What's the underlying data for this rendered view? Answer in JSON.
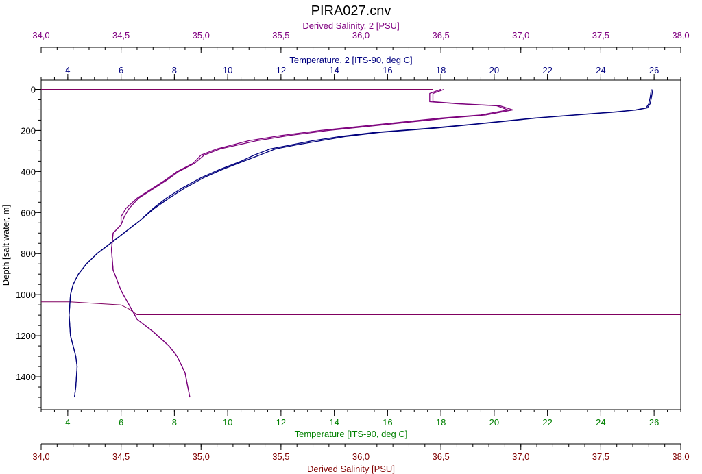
{
  "chart_data": {
    "type": "line",
    "title": "PIRA027.cnv",
    "ylabel": "Depth [salt water, m]",
    "y_reversed": true,
    "ylim": [
      -45,
      1560
    ],
    "yticks": [
      "0",
      "200",
      "400",
      "600",
      "800",
      "1000",
      "1200",
      "1400"
    ],
    "grid": false,
    "legend": "none",
    "axes": {
      "sal2": {
        "label": "Derived Salinity, 2 [PSU]",
        "range": [
          34.0,
          38.0
        ],
        "ticks": [
          "34,0",
          "34,5",
          "35,0",
          "35,5",
          "36,0",
          "36,5",
          "37,0",
          "37,5",
          "38,0"
        ],
        "color": "#800080"
      },
      "temp2": {
        "label": "Temperature, 2 [ITS-90, deg C]",
        "range": [
          3.0,
          27.0
        ],
        "ticks": [
          "4",
          "6",
          "8",
          "10",
          "12",
          "14",
          "16",
          "18",
          "20",
          "22",
          "24",
          "26"
        ],
        "color": "#000080"
      },
      "temp": {
        "label": "Temperature [ITS-90, deg C]",
        "range": [
          3.0,
          27.0
        ],
        "ticks": [
          "4",
          "6",
          "8",
          "10",
          "12",
          "14",
          "16",
          "18",
          "20",
          "22",
          "24",
          "26"
        ],
        "color": "#008000"
      },
      "sal": {
        "label": "Derived Salinity [PSU]",
        "range": [
          34.0,
          38.0
        ],
        "ticks": [
          "34,0",
          "34,5",
          "35,0",
          "35,5",
          "36,0",
          "36,5",
          "37,0",
          "37,5",
          "38,0"
        ],
        "color": "#800000"
      }
    },
    "series": [
      {
        "axis": "temp2",
        "color": "#000080",
        "x": [
          25.9,
          25.85,
          25.8,
          25.7,
          25.3,
          24.5,
          23.5,
          21.5,
          19.2,
          17.5,
          15.5,
          14.2,
          13.2,
          12.4,
          11.6,
          11.0,
          10.5,
          9.7,
          9.0,
          8.3,
          7.7,
          7.2,
          6.7,
          6.2,
          5.6,
          5.1,
          4.7,
          4.4,
          4.2,
          4.1,
          4.05,
          4.1,
          4.2,
          4.3,
          4.35,
          4.3,
          4.25
        ],
        "y": [
          0,
          40,
          70,
          90,
          100,
          110,
          120,
          140,
          170,
          190,
          210,
          230,
          250,
          270,
          290,
          320,
          350,
          390,
          430,
          480,
          530,
          580,
          640,
          690,
          750,
          800,
          850,
          900,
          950,
          1000,
          1100,
          1200,
          1250,
          1300,
          1350,
          1450,
          1500
        ]
      },
      {
        "axis": "temp",
        "color": "#00007a",
        "x": [
          25.95,
          25.9,
          25.85,
          25.75,
          25.35,
          24.6,
          23.6,
          21.6,
          19.3,
          17.7,
          15.7,
          14.4,
          13.5,
          12.6,
          11.8,
          11.2,
          10.6,
          9.8,
          9.1,
          8.4,
          7.8,
          7.25,
          6.7,
          6.2,
          5.6,
          5.1,
          4.7,
          4.4,
          4.2,
          4.1,
          4.05,
          4.1,
          4.2,
          4.3,
          4.35,
          4.3,
          4.25
        ],
        "y": [
          0,
          40,
          70,
          90,
          100,
          110,
          120,
          140,
          170,
          190,
          210,
          230,
          250,
          270,
          290,
          320,
          350,
          390,
          430,
          480,
          530,
          580,
          640,
          690,
          750,
          800,
          850,
          900,
          950,
          1000,
          1100,
          1200,
          1250,
          1300,
          1350,
          1450,
          1500
        ]
      },
      {
        "axis": "sal2",
        "color": "#800080",
        "x": [
          36.5,
          36.43,
          36.43,
          36.6,
          36.85,
          36.92,
          36.75,
          36.5,
          36.25,
          36.0,
          35.75,
          35.5,
          35.3,
          35.1,
          35.0,
          34.95,
          34.85,
          34.78,
          34.7,
          34.6,
          34.53,
          34.5,
          34.5,
          34.45,
          34.44,
          34.45,
          34.5,
          34.55,
          34.6,
          34.7,
          34.8,
          34.85,
          34.9,
          34.93
        ],
        "y": [
          0,
          20,
          60,
          70,
          80,
          100,
          125,
          140,
          160,
          180,
          200,
          225,
          250,
          290,
          320,
          360,
          400,
          440,
          480,
          530,
          580,
          620,
          660,
          700,
          780,
          880,
          980,
          1050,
          1120,
          1180,
          1250,
          1300,
          1380,
          1500
        ]
      },
      {
        "axis": "sal",
        "color": "#7a007a",
        "x": [
          36.52,
          36.45,
          36.45,
          36.62,
          36.87,
          36.95,
          36.78,
          36.55,
          36.3,
          36.05,
          35.8,
          35.55,
          35.35,
          35.12,
          35.02,
          34.96,
          34.86,
          34.79,
          34.71,
          34.61,
          34.55,
          34.52,
          34.5,
          34.45,
          34.44,
          34.45,
          34.5,
          34.55,
          34.6,
          34.7,
          34.8,
          34.85,
          34.9,
          34.93
        ],
        "y": [
          0,
          20,
          60,
          70,
          80,
          100,
          125,
          140,
          160,
          180,
          200,
          225,
          250,
          290,
          320,
          360,
          400,
          440,
          480,
          530,
          580,
          620,
          660,
          700,
          780,
          880,
          980,
          1050,
          1120,
          1180,
          1250,
          1300,
          1380,
          1500
        ]
      }
    ],
    "reference_lines": [
      {
        "color": "#800060",
        "x": [
          34.0,
          36.45
        ],
        "y": [
          0,
          0
        ]
      },
      {
        "color": "#800060",
        "x": [
          34.0,
          34.18,
          34.5,
          34.55,
          34.6,
          38.0
        ],
        "y": [
          1035,
          1035,
          1050,
          1070,
          1098,
          1098
        ]
      }
    ]
  }
}
